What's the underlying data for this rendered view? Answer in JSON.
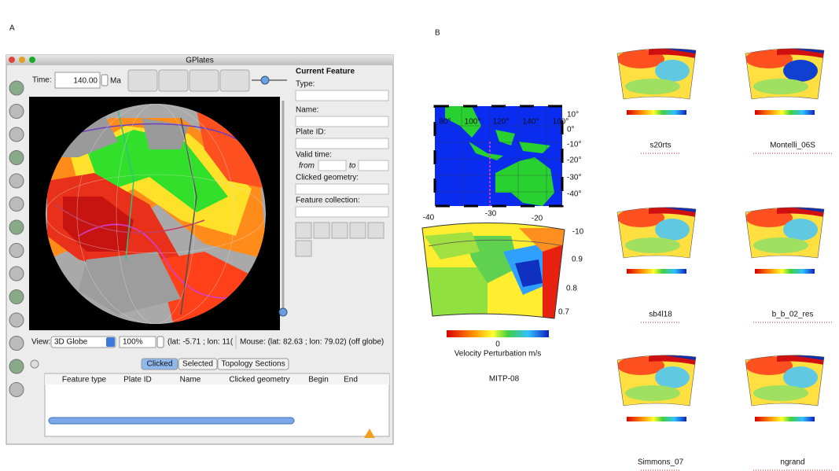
{
  "panel_labels": [
    "A",
    "B"
  ],
  "window": {
    "title": "GPlates",
    "time_label": "Time:",
    "time_value": "140.00",
    "time_unit": "Ma",
    "current_feature": {
      "heading": "Current Feature",
      "fields": [
        "Type:",
        "Name:",
        "Plate ID:",
        "Valid time:",
        "Clicked geometry:",
        "Feature collection:"
      ],
      "from": "from",
      "to": "to"
    },
    "view_label": "View:",
    "view_value": "3D Globe",
    "zoom": "100%",
    "camera": "(lat: -5.71 ; lon: 11(",
    "mouse": "Mouse: (lat: 82.63 ; lon: 79.02) (off globe)",
    "tabs": [
      "Clicked",
      "Selected",
      "Topology Sections"
    ],
    "columns": [
      "Feature type",
      "Plate ID",
      "Name",
      "Clicked geometry",
      "Begin",
      "End"
    ]
  },
  "map": {
    "lon_labels": [
      "80°",
      "100°",
      "120°",
      "140°",
      "160°"
    ],
    "lat_labels": [
      "10°",
      "0°",
      "-10°",
      "-20°",
      "-30°",
      "-40°"
    ]
  },
  "section": {
    "top_labels": [
      "-40",
      "-30",
      "-20",
      "-10"
    ],
    "radius_labels": [
      "0.9",
      "0.8",
      "0.7"
    ],
    "colorbar_tick": "0",
    "colorbar_label": "Velocity Perturbation m/s",
    "name": "MITP-08"
  },
  "models": [
    "s20rts",
    "Montelli_06S",
    "sb4l18",
    "b_b_02_res",
    "Simmons_07",
    "ngrand"
  ]
}
